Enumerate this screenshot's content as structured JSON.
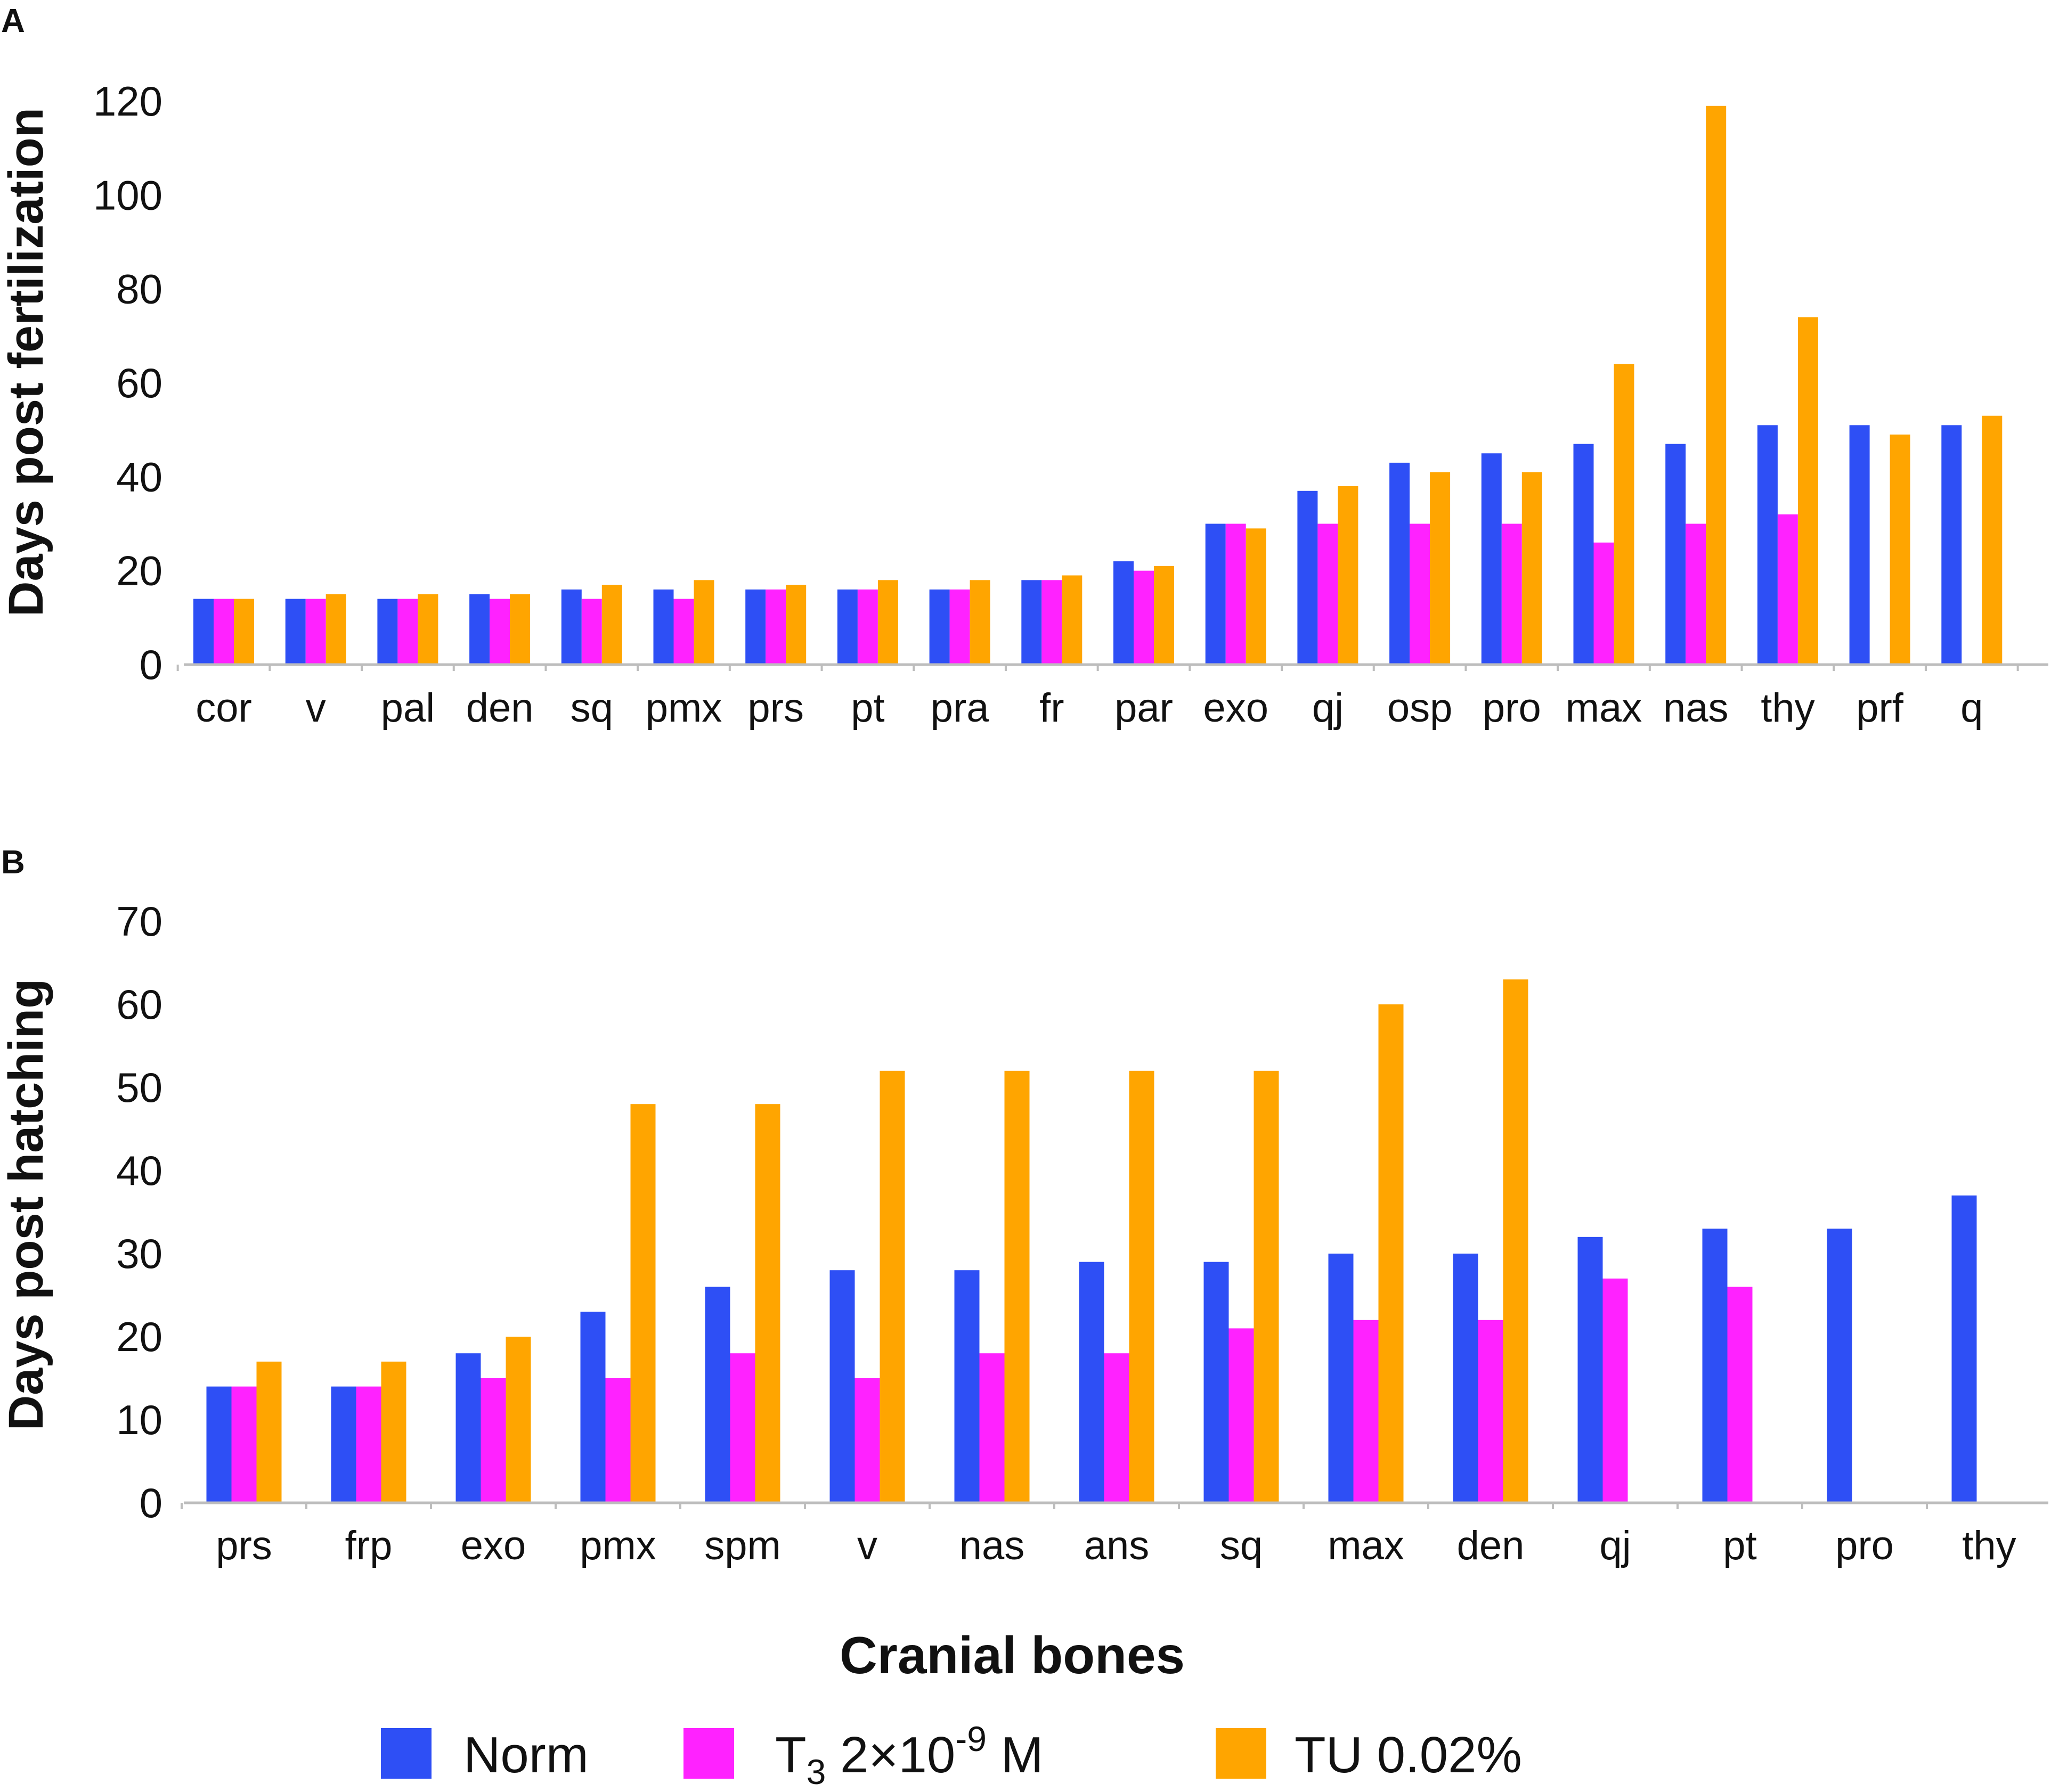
{
  "shared": {
    "xlabel": "Cranial bones",
    "legend": [
      {
        "name": "Norm",
        "color": "#2e4ff5"
      },
      {
        "name": "T3 2×10-9 M",
        "color": "#ff22ff",
        "base": "T",
        "sub": "3",
        "mid": " 2×10",
        "sup": "-9",
        "tail": " M"
      },
      {
        "name": "TU 0.02%",
        "color": "#ffa500"
      }
    ]
  },
  "chart_data": [
    {
      "type": "bar",
      "panel": "A",
      "ylabel": "Days post fertilization",
      "ylim": [
        0,
        120
      ],
      "yticks": [
        "0",
        "20",
        "40",
        "60",
        "80",
        "100",
        "120"
      ],
      "categories": [
        "cor",
        "v",
        "pal",
        "den",
        "sq",
        "pmx",
        "prs",
        "pt",
        "pra",
        "fr",
        "par",
        "exo",
        "qj",
        "osp",
        "pro",
        "max",
        "nas",
        "thy",
        "prf",
        "q"
      ],
      "series": [
        {
          "name": "Norm",
          "values": [
            14,
            14,
            14,
            15,
            16,
            16,
            16,
            16,
            16,
            18,
            22,
            30,
            37,
            43,
            45,
            47,
            47,
            51,
            51,
            51
          ]
        },
        {
          "name": "T3 2×10-9 M",
          "values": [
            14,
            14,
            14,
            14,
            14,
            14,
            16,
            16,
            16,
            18,
            20,
            30,
            30,
            30,
            30,
            26,
            30,
            32,
            null,
            null
          ]
        },
        {
          "name": "TU 0.02%",
          "values": [
            14,
            15,
            15,
            15,
            17,
            18,
            17,
            18,
            18,
            19,
            21,
            29,
            38,
            41,
            41,
            64,
            119,
            74,
            49,
            53
          ]
        }
      ]
    },
    {
      "type": "bar",
      "panel": "B",
      "ylabel": "Days post hatching",
      "ylim": [
        0,
        70
      ],
      "yticks": [
        "0",
        "10",
        "20",
        "30",
        "40",
        "50",
        "60",
        "70"
      ],
      "categories": [
        "prs",
        "frp",
        "exo",
        "pmx",
        "spm",
        "v",
        "nas",
        "ans",
        "sq",
        "max",
        "den",
        "qj",
        "pt",
        "pro",
        "thy"
      ],
      "series": [
        {
          "name": "Norm",
          "values": [
            14,
            14,
            18,
            23,
            26,
            28,
            28,
            29,
            29,
            30,
            30,
            32,
            33,
            33,
            37
          ]
        },
        {
          "name": "T3 2×10-9 M",
          "values": [
            14,
            14,
            15,
            15,
            18,
            15,
            18,
            18,
            21,
            22,
            22,
            27,
            26,
            null,
            null
          ]
        },
        {
          "name": "TU 0.02%",
          "values": [
            17,
            17,
            20,
            48,
            48,
            52,
            52,
            52,
            52,
            60,
            63,
            null,
            null,
            null,
            null
          ]
        }
      ]
    }
  ]
}
